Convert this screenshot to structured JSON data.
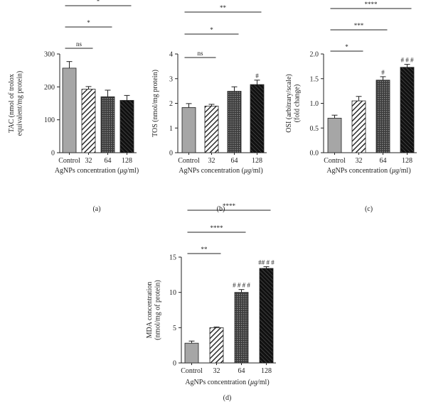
{
  "colors": {
    "control": "#a6a6a6",
    "ink": "#222222",
    "hatch_bg": "#ffffff"
  },
  "chart_data": [
    {
      "type": "bar",
      "panel": "(a)",
      "categories": [
        "Control",
        "32",
        "64",
        "128"
      ],
      "values": [
        257,
        193,
        170,
        159
      ],
      "errors": [
        20,
        8,
        20,
        15
      ],
      "ylabel_lines": [
        "TAC (nmol of trolox",
        "equivalent/mg protein)"
      ],
      "xlabel_prefix": "AgNPs concentration (",
      "xlabel_unit": "μg",
      "xlabel_suffix": "/ml)",
      "ylim": [
        0,
        300
      ],
      "yticks": [
        "0",
        "100",
        "200",
        "300"
      ],
      "significance": [
        {
          "from": 0,
          "to": 1,
          "label": "ns"
        },
        {
          "from": 0,
          "to": 2,
          "label": "*"
        },
        {
          "from": 0,
          "to": 3,
          "label": "*"
        }
      ],
      "bar_marks": [
        "",
        "",
        "",
        ""
      ]
    },
    {
      "type": "bar",
      "panel": "(b)",
      "categories": [
        "Control",
        "32",
        "64",
        "128"
      ],
      "values": [
        1.83,
        1.89,
        2.49,
        2.76
      ],
      "errors": [
        0.16,
        0.07,
        0.18,
        0.18
      ],
      "ylabel_lines": [
        "TOS (nmol/mg protein)"
      ],
      "xlabel_prefix": "AgNPs concentration (",
      "xlabel_unit": "μg",
      "xlabel_suffix": "/ml)",
      "ylim": [
        0,
        4
      ],
      "yticks": [
        "0",
        "1",
        "2",
        "3",
        "4"
      ],
      "significance": [
        {
          "from": 0,
          "to": 1,
          "label": "ns"
        },
        {
          "from": 0,
          "to": 2,
          "label": "*"
        },
        {
          "from": 0,
          "to": 3,
          "label": "**"
        }
      ],
      "bar_marks": [
        "",
        "",
        "",
        "#"
      ]
    },
    {
      "type": "bar",
      "panel": "(c)",
      "categories": [
        "Control",
        "32",
        "64",
        "128"
      ],
      "values": [
        0.7,
        1.05,
        1.47,
        1.73
      ],
      "errors": [
        0.06,
        0.09,
        0.07,
        0.06
      ],
      "ylabel_lines": [
        "OSI (arbitrary/scale)",
        "(fold change)"
      ],
      "xlabel_prefix": "AgNPs concentration (",
      "xlabel_unit": "μg",
      "xlabel_suffix": "/ml)",
      "ylim": [
        0,
        2.0
      ],
      "yticks": [
        "0.0",
        "0.5",
        "1.0",
        "1.5",
        "2.0"
      ],
      "significance": [
        {
          "from": 0,
          "to": 1,
          "label": "*"
        },
        {
          "from": 0,
          "to": 2,
          "label": "***"
        },
        {
          "from": 0,
          "to": 3,
          "label": "****"
        }
      ],
      "bar_marks": [
        "",
        "",
        "#",
        "# # #"
      ]
    },
    {
      "type": "bar",
      "panel": "(d)",
      "categories": [
        "Control",
        "32",
        "64",
        "128"
      ],
      "values": [
        2.8,
        5.0,
        10.0,
        13.4
      ],
      "errors": [
        0.3,
        0.1,
        0.4,
        0.25
      ],
      "ylabel_lines": [
        "MDA concentration",
        "(nmol/mg of protein)"
      ],
      "xlabel_prefix": "AgNPs concentration (",
      "xlabel_unit": "μg",
      "xlabel_suffix": "/ml)",
      "ylim": [
        0,
        15
      ],
      "yticks": [
        "0",
        "5",
        "10",
        "15"
      ],
      "significance": [
        {
          "from": 0,
          "to": 1,
          "label": "**"
        },
        {
          "from": 0,
          "to": 2,
          "label": "****"
        },
        {
          "from": 0,
          "to": 3,
          "label": "****"
        }
      ],
      "bar_marks": [
        "",
        "",
        "# # # #",
        "## # #"
      ]
    }
  ]
}
